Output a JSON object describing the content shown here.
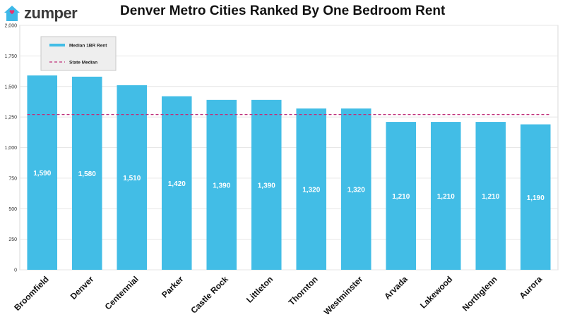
{
  "logo": {
    "text": "zumper",
    "icon": "house-icon",
    "color": "#3db8e8",
    "accent": "#e8326f"
  },
  "title": "Denver Metro Cities Ranked By One Bedroom Rent",
  "chart_data": {
    "type": "bar",
    "categories": [
      "Broomfield",
      "Denver",
      "Centennial",
      "Parker",
      "Castle Rock",
      "Littleton",
      "Thornton",
      "Westminster",
      "Arvada",
      "Lakewood",
      "Northglenn",
      "Aurora"
    ],
    "series": [
      {
        "name": "Median 1BR Rent",
        "values": [
          1590,
          1580,
          1510,
          1420,
          1390,
          1390,
          1320,
          1320,
          1210,
          1210,
          1210,
          1190
        ],
        "color": "#42bde6"
      }
    ],
    "value_labels": [
      "1,590",
      "1,580",
      "1,510",
      "1,420",
      "1,390",
      "1,390",
      "1,320",
      "1,320",
      "1,210",
      "1,210",
      "1,210",
      "1,190"
    ],
    "reference_line": {
      "name": "State Median",
      "value": 1270,
      "color": "#c0307a",
      "style": "dashed"
    },
    "ylim": [
      0,
      2000
    ],
    "yticks": [
      0,
      250,
      500,
      750,
      1000,
      1250,
      1500,
      1750,
      2000
    ],
    "ytick_labels": [
      "0",
      "250",
      "500",
      "750",
      "1,000",
      "1,250",
      "1,500",
      "1,750",
      "2,000"
    ],
    "grid": true,
    "legend": {
      "placement": "top-left",
      "items": [
        "Median 1BR Rent",
        "State Median"
      ]
    }
  }
}
